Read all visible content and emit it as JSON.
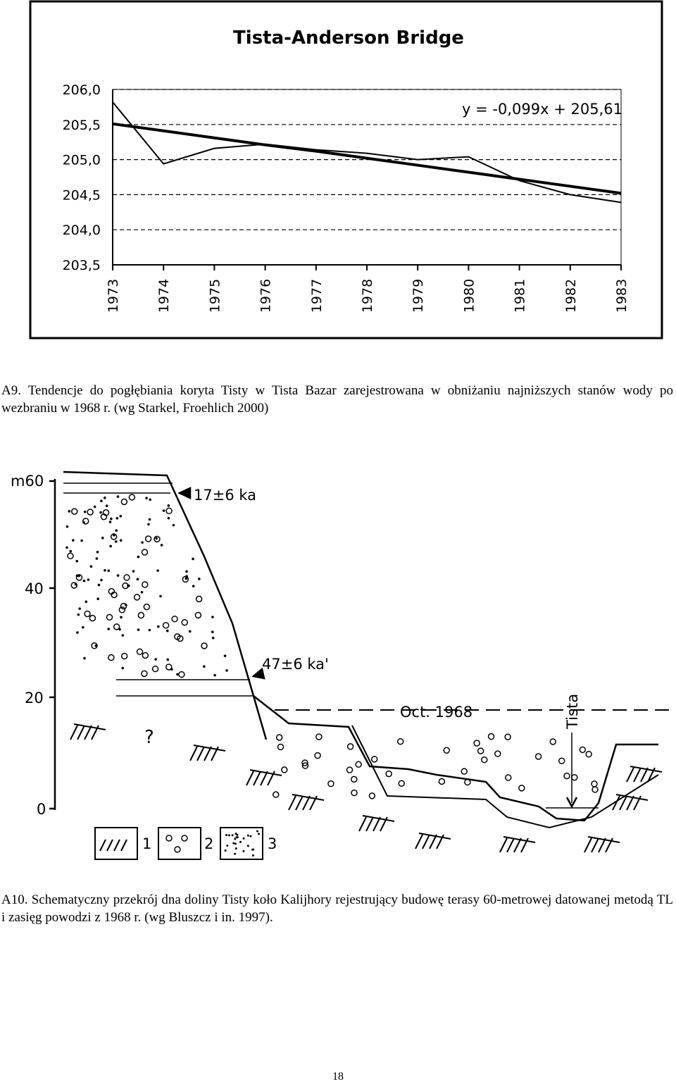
{
  "chart_data": {
    "type": "line",
    "title": "Tista-Anderson Bridge",
    "annotation": "y = -0,099x + 205,61",
    "x": [
      1973,
      1974,
      1975,
      1976,
      1977,
      1978,
      1979,
      1980,
      1981,
      1982,
      1983
    ],
    "xlim": [
      1973,
      1983
    ],
    "xticks": [
      1973,
      1974,
      1975,
      1976,
      1977,
      1978,
      1979,
      1980,
      1981,
      1982,
      1983
    ],
    "ylim": [
      203.5,
      206.0
    ],
    "yticks": [
      {
        "value": 203.5,
        "label": "203,5"
      },
      {
        "value": 204.0,
        "label": "204,0"
      },
      {
        "value": 204.5,
        "label": "204,5"
      },
      {
        "value": 205.0,
        "label": "205,0"
      },
      {
        "value": 205.5,
        "label": "205,5"
      },
      {
        "value": 206.0,
        "label": "206,0"
      }
    ],
    "grid": true,
    "series": [
      {
        "color": "#000000",
        "values": [
          205.82,
          204.94,
          205.16,
          205.22,
          205.14,
          205.09,
          205.0,
          205.04,
          204.7,
          204.5,
          204.39
        ]
      },
      {
        "color": "#000000",
        "values": [
          205.51,
          205.41,
          205.31,
          205.21,
          205.12,
          205.02,
          204.92,
          204.82,
          204.72,
          204.62,
          204.52
        ]
      }
    ]
  },
  "caption_a9": "A9. Tendencje do pogłębiania koryta Tisty w Tista Bazar zarejestrowana w obniżaniu najniższych stanów wody po wezbraniu w 1968 r. (wg Starkel, Froehlich 2000)",
  "diagram": {
    "axis_labels": [
      "m60",
      "40",
      "20",
      "0"
    ],
    "age_upper": "17±6 ka",
    "age_lower": "47±6 ka'",
    "flood": "Oct. 1968",
    "river": "Tista",
    "question": "?",
    "legend": [
      "1",
      "2",
      "3"
    ]
  },
  "caption_a10": "A10. Schematyczny przekrój dna doliny Tisty koło Kalijhory rejestrujący budowę terasy 60-metrowej datowanej metodą TL i zasięg powodzi z 1968 r. (wg Bluszcz i in. 1997).",
  "page_number": "18"
}
